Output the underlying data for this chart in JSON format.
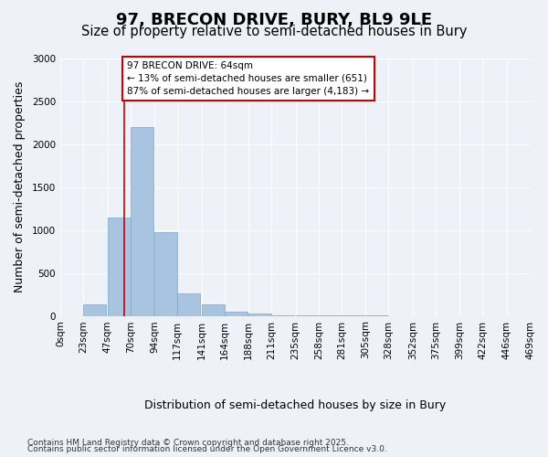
{
  "title": "97, BRECON DRIVE, BURY, BL9 9LE",
  "subtitle": "Size of property relative to semi-detached houses in Bury",
  "xlabel": "Distribution of semi-detached houses by size in Bury",
  "ylabel": "Number of semi-detached properties",
  "footnote1": "Contains HM Land Registry data © Crown copyright and database right 2025.",
  "footnote2": "Contains public sector information licensed under the Open Government Licence v3.0.",
  "bin_labels": [
    "0sqm",
    "23sqm",
    "47sqm",
    "70sqm",
    "94sqm",
    "117sqm",
    "141sqm",
    "164sqm",
    "188sqm",
    "211sqm",
    "235sqm",
    "258sqm",
    "281sqm",
    "305sqm",
    "328sqm",
    "352sqm",
    "375sqm",
    "399sqm",
    "422sqm",
    "446sqm",
    "469sqm"
  ],
  "bin_edges": [
    0,
    23,
    47,
    70,
    94,
    117,
    141,
    164,
    188,
    211,
    235,
    258,
    281,
    305,
    328,
    352,
    375,
    399,
    422,
    446,
    469
  ],
  "bar_heights": [
    0,
    130,
    1150,
    2200,
    975,
    260,
    130,
    50,
    30,
    10,
    5,
    3,
    2,
    1,
    0,
    0,
    0,
    0,
    0,
    0
  ],
  "bar_color": "#a8c4e0",
  "bar_edge_color": "#7aaac8",
  "property_size": 64,
  "vline_color": "#cc0000",
  "annotation_line1": "97 BRECON DRIVE: 64sqm",
  "annotation_line2": "← 13% of semi-detached houses are smaller (651)",
  "annotation_line3": "87% of semi-detached houses are larger (4,183) →",
  "annotation_box_color": "#cc0000",
  "annotation_fill": "#ffffff",
  "ylim": [
    0,
    3000
  ],
  "yticks": [
    0,
    500,
    1000,
    1500,
    2000,
    2500,
    3000
  ],
  "bg_color": "#eef2f8",
  "plot_bg_color": "#eef2f8",
  "grid_color": "#ffffff",
  "title_fontsize": 13,
  "subtitle_fontsize": 10.5,
  "axis_label_fontsize": 9,
  "tick_fontsize": 7.5,
  "footnote_fontsize": 6.5
}
